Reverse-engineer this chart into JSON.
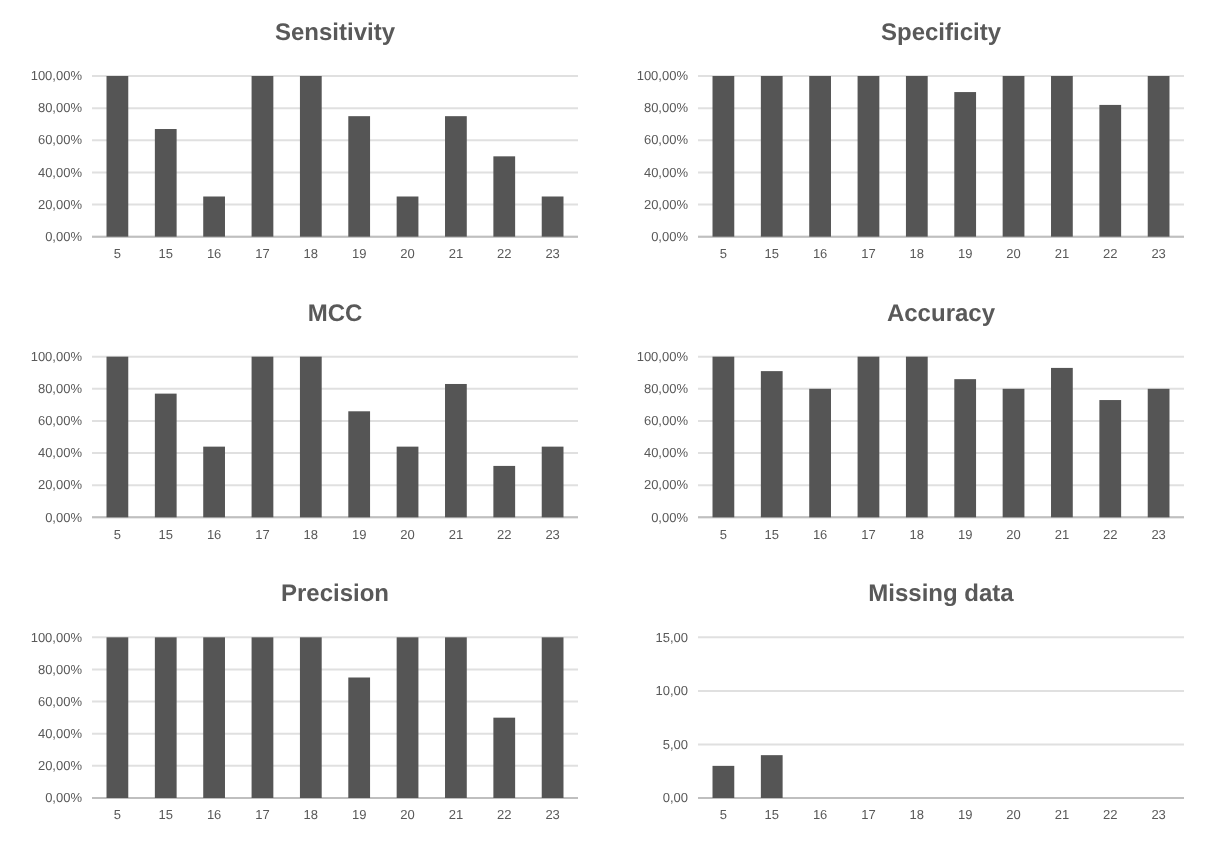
{
  "chart_data": [
    {
      "type": "bar",
      "title": "Sensitivity",
      "categories": [
        "5",
        "15",
        "16",
        "17",
        "18",
        "19",
        "20",
        "21",
        "22",
        "23"
      ],
      "values": [
        100,
        67,
        25,
        100,
        100,
        75,
        25,
        75,
        50,
        25
      ],
      "color": "#555555",
      "ylim": [
        0,
        100
      ],
      "yticks": [
        {
          "value": 0,
          "label": "0,00%"
        },
        {
          "value": 20,
          "label": "20,00%"
        },
        {
          "value": 40,
          "label": "40,00%"
        },
        {
          "value": 60,
          "label": "60,00%"
        },
        {
          "value": 80,
          "label": "80,00%"
        },
        {
          "value": 100,
          "label": "100,00%"
        }
      ],
      "grid": "y"
    },
    {
      "type": "bar",
      "title": "Specificity",
      "categories": [
        "5",
        "15",
        "16",
        "17",
        "18",
        "19",
        "20",
        "21",
        "22",
        "23"
      ],
      "values": [
        100,
        100,
        100,
        100,
        100,
        90,
        100,
        100,
        82,
        100
      ],
      "color": "#555555",
      "ylim": [
        0,
        100
      ],
      "yticks": [
        {
          "value": 0,
          "label": "0,00%"
        },
        {
          "value": 20,
          "label": "20,00%"
        },
        {
          "value": 40,
          "label": "40,00%"
        },
        {
          "value": 60,
          "label": "60,00%"
        },
        {
          "value": 80,
          "label": "80,00%"
        },
        {
          "value": 100,
          "label": "100,00%"
        }
      ],
      "grid": "y"
    },
    {
      "type": "bar",
      "title": "MCC",
      "categories": [
        "5",
        "15",
        "16",
        "17",
        "18",
        "19",
        "20",
        "21",
        "22",
        "23"
      ],
      "values": [
        100,
        77,
        44,
        100,
        100,
        66,
        44,
        83,
        32,
        44
      ],
      "color": "#555555",
      "ylim": [
        0,
        100
      ],
      "yticks": [
        {
          "value": 0,
          "label": "0,00%"
        },
        {
          "value": 20,
          "label": "20,00%"
        },
        {
          "value": 40,
          "label": "40,00%"
        },
        {
          "value": 60,
          "label": "60,00%"
        },
        {
          "value": 80,
          "label": "80,00%"
        },
        {
          "value": 100,
          "label": "100,00%"
        }
      ],
      "grid": "y"
    },
    {
      "type": "bar",
      "title": "Accuracy",
      "categories": [
        "5",
        "15",
        "16",
        "17",
        "18",
        "19",
        "20",
        "21",
        "22",
        "23"
      ],
      "values": [
        100,
        91,
        80,
        100,
        100,
        86,
        80,
        93,
        73,
        80
      ],
      "color": "#555555",
      "ylim": [
        0,
        100
      ],
      "yticks": [
        {
          "value": 0,
          "label": "0,00%"
        },
        {
          "value": 20,
          "label": "20,00%"
        },
        {
          "value": 40,
          "label": "40,00%"
        },
        {
          "value": 60,
          "label": "60,00%"
        },
        {
          "value": 80,
          "label": "80,00%"
        },
        {
          "value": 100,
          "label": "100,00%"
        }
      ],
      "grid": "y"
    },
    {
      "type": "bar",
      "title": "Precision",
      "categories": [
        "5",
        "15",
        "16",
        "17",
        "18",
        "19",
        "20",
        "21",
        "22",
        "23"
      ],
      "values": [
        100,
        100,
        100,
        100,
        100,
        75,
        100,
        100,
        50,
        100
      ],
      "color": "#555555",
      "ylim": [
        0,
        100
      ],
      "yticks": [
        {
          "value": 0,
          "label": "0,00%"
        },
        {
          "value": 20,
          "label": "20,00%"
        },
        {
          "value": 40,
          "label": "40,00%"
        },
        {
          "value": 60,
          "label": "60,00%"
        },
        {
          "value": 80,
          "label": "80,00%"
        },
        {
          "value": 100,
          "label": "100,00%"
        }
      ],
      "grid": "y"
    },
    {
      "type": "bar",
      "title": "Missing data",
      "categories": [
        "5",
        "15",
        "16",
        "17",
        "18",
        "19",
        "20",
        "21",
        "22",
        "23"
      ],
      "values": [
        3,
        4,
        0,
        0,
        0,
        0,
        0,
        0,
        0,
        0
      ],
      "color": "#555555",
      "ylim": [
        0,
        15
      ],
      "yticks": [
        {
          "value": 0,
          "label": "0,00"
        },
        {
          "value": 5,
          "label": "5,00"
        },
        {
          "value": 10,
          "label": "10,00"
        },
        {
          "value": 15,
          "label": "15,00"
        }
      ],
      "grid": "y"
    }
  ]
}
